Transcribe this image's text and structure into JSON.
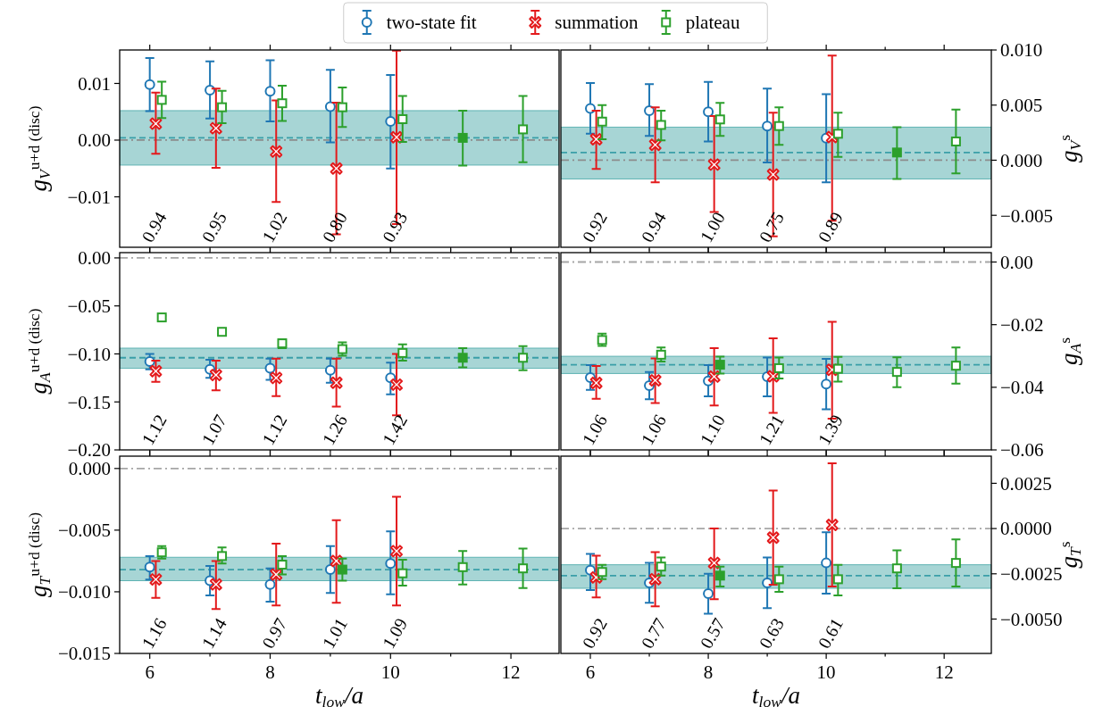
{
  "chart_data": [
    {
      "type": "scatter",
      "ylabel": "g$_{V}$$^{u+d (disc)}$",
      "xlim": [
        5.5,
        12.8
      ],
      "xticks": [
        6,
        {
          "value": 7,
          "label": null
        },
        8,
        {
          "value": 9,
          "label": null
        },
        10,
        {
          "value": 11,
          "label": null
        },
        12
      ],
      "ylim": [
        -0.0189,
        0.0159
      ],
      "yticks": [
        {
          "value": 0.01,
          "label": "0.01"
        },
        {
          "value": 0,
          "label": "0.00"
        },
        {
          "value": -0.01,
          "label": "−0.01"
        }
      ],
      "tick_labels": "y",
      "legend": "top",
      "series": [
        {
          "name": "two-state fit",
          "color": "#1f77b4",
          "marker": "circle",
          "x": [
            6,
            7,
            8,
            9,
            10
          ],
          "values": [
            0.0098,
            0.0088,
            0.0086,
            0.0059,
            0.0033
          ],
          "errors": [
            [
              0.0051,
              0.0145
            ],
            [
              0.0038,
              0.0139
            ],
            [
              0.0033,
              0.0141
            ],
            [
              -0.0004,
              0.0124
            ],
            [
              -0.005,
              0.0115
            ]
          ]
        },
        {
          "name": "summation",
          "color": "#e31a1c",
          "marker": "cross",
          "x": [
            6.1,
            7.1,
            8.1,
            9.1,
            10.1
          ],
          "values": [
            0.0029,
            0.0021,
            -0.002,
            -0.005,
            0.0005
          ],
          "errors": [
            [
              -0.0024,
              0.0084
            ],
            [
              -0.0049,
              0.0091
            ],
            [
              -0.0109,
              0.007
            ],
            [
              -0.0166,
              0.0066
            ],
            [
              -0.0148,
              0.0158
            ]
          ]
        },
        {
          "name": "plateau",
          "color": "#2ca02c",
          "marker": "square",
          "x": [
            6.2,
            7.2,
            8.2,
            9.2,
            10.2,
            12.2
          ],
          "values": [
            0.0071,
            0.0058,
            0.0065,
            0.0058,
            0.0037,
            0.0019
          ],
          "errors": [
            [
              0.0039,
              0.0103
            ],
            [
              0.003,
              0.0087
            ],
            [
              0.0034,
              0.0096
            ],
            [
              0.0023,
              0.0093
            ],
            [
              -0.0003,
              0.0078
            ],
            [
              -0.0039,
              0.0078
            ]
          ]
        },
        {
          "color": "#2ca02c",
          "marker": "square",
          "x": [
            11.2
          ],
          "values": [
            0.0004
          ],
          "errors": [
            [
              -0.0045,
              0.0052
            ]
          ]
        }
      ],
      "bands": [
        {
          "axis": "y",
          "from": -0.0044,
          "to": 0.0052,
          "color": "#5fb3b3"
        }
      ],
      "ref_lines": [
        {
          "axis": "y",
          "value": 0,
          "color": "#8c8c8c",
          "line_style": "dashdot"
        },
        {
          "axis": "y",
          "value": 0.0004,
          "color": "#3a9fa8",
          "line_style": "dashed"
        }
      ],
      "annotations": [
        "0.94",
        "0.95",
        "1.02",
        "0.80",
        "0.93"
      ]
    },
    {
      "type": "scatter",
      "y2label": "g$_{V}$$^{s}$",
      "xlim": [
        5.5,
        12.8
      ],
      "xticks": [
        6,
        {
          "value": 7,
          "label": null
        },
        8,
        {
          "value": 9,
          "label": null
        },
        10,
        {
          "value": 11,
          "label": null
        },
        12
      ],
      "y2lim": [
        -0.0079,
        0.01
      ],
      "y2ticks": [
        {
          "value": 0.01,
          "label": "0.010"
        },
        {
          "value": 0.005,
          "label": "0.005"
        },
        {
          "value": 0,
          "label": "0.000"
        },
        {
          "value": -0.005,
          "label": "−0.005"
        }
      ],
      "tick_labels": "y",
      "series": [
        {
          "color": "#1f77b4",
          "marker": "circle",
          "axis": "y2",
          "x": [
            6,
            7,
            8,
            9,
            10
          ],
          "values": [
            0.0047,
            0.0045,
            0.0044,
            0.0031,
            0.002
          ],
          "errors": [
            [
              0.0024,
              0.007
            ],
            [
              0.0022,
              0.0069
            ],
            [
              0.0017,
              0.0071
            ],
            [
              -0.0002,
              0.0065
            ],
            [
              -0.002,
              0.006
            ]
          ]
        },
        {
          "color": "#e31a1c",
          "marker": "cross",
          "axis": "y2",
          "x": [
            6.1,
            7.1,
            8.1,
            9.1,
            10.1
          ],
          "values": [
            0.0019,
            0.0014,
            -0.0004,
            -0.0013,
            0.0021
          ],
          "errors": [
            [
              -0.0008,
              0.0045
            ],
            [
              -0.002,
              0.0048
            ],
            [
              -0.0047,
              0.004
            ],
            [
              -0.0069,
              0.0043
            ],
            [
              -0.0055,
              0.0095
            ]
          ]
        },
        {
          "color": "#2ca02c",
          "marker": "square",
          "axis": "y2",
          "x": [
            6.2,
            7.2,
            8.2,
            9.2,
            10.2,
            12.2
          ],
          "values": [
            0.0035,
            0.0032,
            0.0037,
            0.0031,
            0.0024,
            0.0017
          ],
          "errors": [
            [
              0.0019,
              0.005
            ],
            [
              0.0018,
              0.0045
            ],
            [
              0.0022,
              0.0052
            ],
            [
              0.0014,
              0.0048
            ],
            [
              0.0003,
              0.0043
            ],
            [
              -0.0012,
              0.0046
            ]
          ]
        },
        {
          "color": "#2ca02c",
          "marker": "square",
          "axis": "y2",
          "x": [
            11.2
          ],
          "values": [
            0.0007
          ],
          "errors": [
            [
              -0.0017,
              0.003
            ]
          ]
        }
      ],
      "bands": [
        {
          "axis": "y2",
          "from": -0.0017,
          "to": 0.003,
          "color": "#5fb3b3"
        }
      ],
      "ref_lines": [
        {
          "axis": "y2",
          "value": 0,
          "color": "#8c8c8c",
          "line_style": "dashdot"
        },
        {
          "axis": "y2",
          "value": 0.0007,
          "color": "#3a9fa8",
          "line_style": "dashed"
        }
      ],
      "annotations": [
        "0.92",
        "0.94",
        "1.00",
        "0.75",
        "0.89"
      ]
    },
    {
      "type": "scatter",
      "ylabel": "g$_{A}$$^{u+d (disc)}$",
      "xlim": [
        5.5,
        12.8
      ],
      "xticks": [
        6,
        {
          "value": 7,
          "label": null
        },
        8,
        {
          "value": 9,
          "label": null
        },
        10,
        {
          "value": 11,
          "label": null
        },
        12
      ],
      "ylim": [
        -0.2,
        0.0055
      ],
      "yticks": [
        {
          "value": 0,
          "label": "0.00"
        },
        {
          "value": -0.05,
          "label": "−0.05"
        },
        {
          "value": -0.1,
          "label": "−0.10"
        },
        {
          "value": -0.15,
          "label": "−0.15"
        },
        {
          "value": -0.2,
          "label": "−0.20"
        }
      ],
      "tick_labels": "y",
      "series": [
        {
          "color": "#1f77b4",
          "marker": "circle",
          "x": [
            6,
            7,
            8,
            9,
            10
          ],
          "values": [
            -0.108,
            -0.116,
            -0.115,
            -0.117,
            -0.125
          ],
          "errors": [
            [
              -0.116,
              -0.1
            ],
            [
              -0.125,
              -0.106
            ],
            [
              -0.127,
              -0.105
            ],
            [
              -0.13,
              -0.105
            ],
            [
              -0.142,
              -0.109
            ]
          ]
        },
        {
          "color": "#e31a1c",
          "marker": "cross",
          "x": [
            6.1,
            7.1,
            8.1,
            9.1,
            10.1
          ],
          "values": [
            -0.118,
            -0.122,
            -0.125,
            -0.13,
            -0.132
          ],
          "errors": [
            [
              -0.129,
              -0.107
            ],
            [
              -0.138,
              -0.107
            ],
            [
              -0.144,
              -0.105
            ],
            [
              -0.155,
              -0.105
            ],
            [
              -0.164,
              -0.1
            ]
          ]
        },
        {
          "color": "#2ca02c",
          "marker": "square",
          "x": [
            6.2,
            7.2,
            8.2,
            9.2,
            10.2,
            12.2
          ],
          "values": [
            -0.062,
            -0.077,
            -0.089,
            -0.095,
            -0.099,
            -0.104
          ],
          "errors": [
            [
              -0.065,
              -0.06
            ],
            [
              -0.079,
              -0.075
            ],
            [
              -0.094,
              -0.085
            ],
            [
              -0.102,
              -0.088
            ],
            [
              -0.107,
              -0.09
            ],
            [
              -0.117,
              -0.092
            ]
          ]
        },
        {
          "color": "#2ca02c",
          "marker": "square",
          "x": [
            11.2
          ],
          "values": [
            -0.104
          ],
          "errors": [
            [
              -0.114,
              -0.094
            ]
          ]
        }
      ],
      "bands": [
        {
          "axis": "y",
          "from": -0.115,
          "to": -0.094,
          "color": "#5fb3b3"
        }
      ],
      "ref_lines": [
        {
          "axis": "y",
          "value": 0,
          "color": "#a6a6a6",
          "line_style": "dashdot"
        },
        {
          "axis": "y",
          "value": -0.104,
          "color": "#3a9fa8",
          "line_style": "dashed"
        }
      ],
      "annotations": [
        "1.12",
        "1.07",
        "1.12",
        "1.26",
        "1.42"
      ]
    },
    {
      "type": "scatter",
      "y2label": "g$_{A}$$^{s}$",
      "xlim": [
        5.5,
        12.8
      ],
      "xticks": [
        6,
        {
          "value": 7,
          "label": null
        },
        8,
        {
          "value": 9,
          "label": null
        },
        10,
        {
          "value": 11,
          "label": null
        },
        12
      ],
      "y2lim": [
        -0.06,
        0.003
      ],
      "y2ticks": [
        {
          "value": 0,
          "label": "0.00"
        },
        {
          "value": -0.02,
          "label": "−0.02"
        },
        {
          "value": -0.04,
          "label": "−0.04"
        },
        {
          "value": -0.06,
          "label": "−0.06"
        }
      ],
      "tick_labels": "y",
      "series": [
        {
          "color": "#1f77b4",
          "marker": "circle",
          "axis": "y2",
          "x": [
            6,
            7,
            8,
            9,
            10
          ],
          "values": [
            -0.0369,
            -0.0395,
            -0.038,
            -0.0366,
            -0.039
          ],
          "errors": [
            [
              -0.0408,
              -0.0329
            ],
            [
              -0.0438,
              -0.0351
            ],
            [
              -0.0429,
              -0.0329
            ],
            [
              -0.0429,
              -0.0305
            ],
            [
              -0.047,
              -0.0309
            ]
          ]
        },
        {
          "color": "#e31a1c",
          "marker": "cross",
          "axis": "y2",
          "x": [
            6.1,
            7.1,
            8.1,
            9.1,
            10.1
          ],
          "values": [
            -0.0386,
            -0.0378,
            -0.0366,
            -0.0365,
            -0.0344
          ],
          "errors": [
            [
              -0.0437,
              -0.0332
            ],
            [
              -0.045,
              -0.0308
            ],
            [
              -0.0458,
              -0.0275
            ],
            [
              -0.0482,
              -0.0244
            ],
            [
              -0.05,
              -0.0191
            ]
          ]
        },
        {
          "color": "#2ca02c",
          "marker": "square",
          "axis": "y2",
          "x": [
            6.2,
            7.2,
            9.2,
            10.2,
            11.2,
            12.2
          ],
          "values": [
            -0.0249,
            -0.0296,
            -0.0339,
            -0.0341,
            -0.0351,
            -0.0331
          ],
          "errors": [
            [
              -0.0268,
              -0.0229
            ],
            [
              -0.0318,
              -0.0273
            ],
            [
              -0.0372,
              -0.0305
            ],
            [
              -0.0382,
              -0.0303
            ],
            [
              -0.04,
              -0.0304
            ],
            [
              -0.0388,
              -0.0273
            ]
          ]
        },
        {
          "color": "#2ca02c",
          "marker": "square",
          "axis": "y2",
          "x": [
            8.2
          ],
          "values": [
            -0.0328
          ],
          "errors": [
            [
              -0.0356,
              -0.0302
            ]
          ]
        }
      ],
      "bands": [
        {
          "axis": "y2",
          "from": -0.0356,
          "to": -0.0301,
          "color": "#5fb3b3"
        }
      ],
      "ref_lines": [
        {
          "axis": "y2",
          "value": 0,
          "color": "#a6a6a6",
          "line_style": "dashdot"
        },
        {
          "axis": "y2",
          "value": -0.0328,
          "color": "#3a9fa8",
          "line_style": "dashed"
        }
      ],
      "annotations": [
        "1.06",
        "1.06",
        "1.10",
        "1.21",
        "1.39"
      ]
    },
    {
      "type": "scatter",
      "ylabel": "g$_{T}$$^{u+d (disc)}$",
      "xlabel": "t$_{low}$/a",
      "xlim": [
        5.5,
        12.8
      ],
      "xticks": [
        6,
        {
          "value": 7,
          "label": null
        },
        8,
        {
          "value": 9,
          "label": null
        },
        10,
        {
          "value": 11,
          "label": null
        },
        12
      ],
      "ylim": [
        -0.015,
        0.001
      ],
      "yticks": [
        {
          "value": 0,
          "label": "0.000"
        },
        {
          "value": -0.005,
          "label": "−0.005"
        },
        {
          "value": -0.01,
          "label": "−0.010"
        },
        {
          "value": -0.015,
          "label": "−0.015"
        }
      ],
      "series": [
        {
          "color": "#1f77b4",
          "marker": "circle",
          "x": [
            6,
            7,
            8,
            9,
            10
          ],
          "values": [
            -0.008,
            -0.0091,
            -0.0094,
            -0.0082,
            -0.0077
          ],
          "errors": [
            [
              -0.009,
              -0.0071
            ],
            [
              -0.0103,
              -0.0079
            ],
            [
              -0.0108,
              -0.0081
            ],
            [
              -0.0101,
              -0.0063
            ],
            [
              -0.0102,
              -0.0051
            ]
          ]
        },
        {
          "color": "#e31a1c",
          "marker": "cross",
          "x": [
            6.1,
            7.1,
            8.1,
            9.1,
            10.1
          ],
          "values": [
            -0.009,
            -0.0094,
            -0.0086,
            -0.0075,
            -0.0067
          ],
          "errors": [
            [
              -0.0105,
              -0.0075
            ],
            [
              -0.0114,
              -0.0075
            ],
            [
              -0.0111,
              -0.0061
            ],
            [
              -0.0109,
              -0.0042
            ],
            [
              -0.0111,
              -0.0023
            ]
          ]
        },
        {
          "color": "#2ca02c",
          "marker": "square",
          "x": [
            6.2,
            7.2,
            8.2,
            10.2,
            11.2,
            12.2
          ],
          "values": [
            -0.0068,
            -0.0071,
            -0.0078,
            -0.0085,
            -0.008,
            -0.0081
          ],
          "errors": [
            [
              -0.0073,
              -0.0063
            ],
            [
              -0.0077,
              -0.0064
            ],
            [
              -0.0086,
              -0.0071
            ],
            [
              -0.0095,
              -0.0074
            ],
            [
              -0.0094,
              -0.0067
            ],
            [
              -0.0097,
              -0.0065
            ]
          ]
        },
        {
          "color": "#2ca02c",
          "marker": "square",
          "x": [
            9.2
          ],
          "values": [
            -0.0082
          ],
          "errors": [
            [
              -0.0091,
              -0.0073
            ]
          ]
        }
      ],
      "bands": [
        {
          "axis": "y",
          "from": -0.0091,
          "to": -0.0072,
          "color": "#5fb3b3"
        }
      ],
      "ref_lines": [
        {
          "axis": "y",
          "value": 0,
          "color": "#a6a6a6",
          "line_style": "dashdot"
        },
        {
          "axis": "y",
          "value": -0.0082,
          "color": "#3a9fa8",
          "line_style": "dashed"
        }
      ],
      "annotations": [
        "1.16",
        "1.14",
        "0.97",
        "1.01",
        "1.09"
      ]
    },
    {
      "type": "scatter",
      "y2label": "g$_{T}$$^{s}$",
      "xlabel": "t$_{low}$/a",
      "xlim": [
        5.5,
        12.8
      ],
      "xticks": [
        6,
        {
          "value": 7,
          "label": null
        },
        8,
        {
          "value": 9,
          "label": null
        },
        10,
        {
          "value": 11,
          "label": null
        },
        12
      ],
      "y2lim": [
        -0.0069,
        0.004
      ],
      "y2ticks": [
        {
          "value": 0.0025,
          "label": "0.0025"
        },
        {
          "value": 0,
          "label": "0.0000"
        },
        {
          "value": -0.0025,
          "label": "−0.0025"
        },
        {
          "value": -0.005,
          "label": "−0.0050"
        }
      ],
      "series": [
        {
          "color": "#1f77b4",
          "marker": "circle",
          "axis": "y2",
          "x": [
            6,
            7,
            8,
            9,
            10
          ],
          "values": [
            -0.0023,
            -0.003,
            -0.0036,
            -0.003,
            -0.0019
          ],
          "errors": [
            [
              -0.0034,
              -0.0014
            ],
            [
              -0.0041,
              -0.0019
            ],
            [
              -0.0047,
              -0.0025
            ],
            [
              -0.0044,
              -0.0016
            ],
            [
              -0.0036,
              -0.0002
            ]
          ]
        },
        {
          "color": "#e31a1c",
          "marker": "cross",
          "axis": "y2",
          "x": [
            6.1,
            7.1,
            8.1,
            9.1,
            10.1
          ],
          "values": [
            -0.0027,
            -0.0028,
            -0.0019,
            -0.0005,
            0.0002
          ],
          "errors": [
            [
              -0.0038,
              -0.0015
            ],
            [
              -0.0043,
              -0.0013
            ],
            [
              -0.0039,
              0
            ],
            [
              -0.0031,
              0.0021
            ],
            [
              -0.0032,
              0.0036
            ]
          ]
        },
        {
          "color": "#2ca02c",
          "marker": "square",
          "axis": "y2",
          "x": [
            6.2,
            7.2,
            9.2,
            10.2,
            11.2,
            12.2
          ],
          "values": [
            -0.0024,
            -0.0021,
            -0.0028,
            -0.0028,
            -0.0022,
            -0.0019
          ],
          "errors": [
            [
              -0.0028,
              -0.002
            ],
            [
              -0.0026,
              -0.0016
            ],
            [
              -0.0035,
              -0.0021
            ],
            [
              -0.0037,
              -0.002
            ],
            [
              -0.0033,
              -0.0012
            ],
            [
              -0.0032,
              -0.0006
            ]
          ]
        },
        {
          "color": "#2ca02c",
          "marker": "square",
          "axis": "y2",
          "x": [
            8.2
          ],
          "values": [
            -0.0026
          ],
          "errors": [
            [
              -0.0032,
              -0.0021
            ]
          ]
        }
      ],
      "bands": [
        {
          "axis": "y2",
          "from": -0.0033,
          "to": -0.002,
          "color": "#5fb3b3"
        }
      ],
      "ref_lines": [
        {
          "axis": "y2",
          "value": 0,
          "color": "#a6a6a6",
          "line_style": "dashdot"
        },
        {
          "axis": "y2",
          "value": -0.0026,
          "color": "#3a9fa8",
          "line_style": "dashed"
        }
      ],
      "annotations": [
        "0.92",
        "0.77",
        "0.57",
        "0.63",
        "0.61"
      ]
    }
  ]
}
